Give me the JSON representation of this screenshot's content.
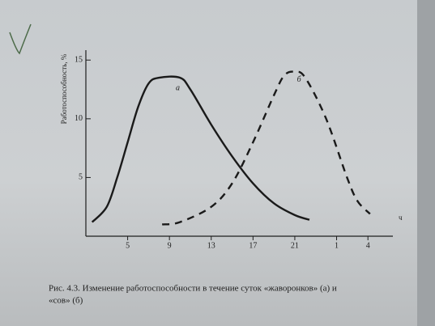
{
  "chart_data": {
    "type": "line",
    "ylabel": "Работоспособность, %",
    "xlabel": "ч",
    "xlim": [
      1,
      30
    ],
    "xticks": [
      5,
      9,
      13,
      17,
      21,
      {
        "value": 25,
        "label": "1"
      },
      {
        "value": 28,
        "label": "4"
      }
    ],
    "ylim": [
      0,
      15.5
    ],
    "yticks": [
      5,
      10,
      15
    ],
    "series": [
      {
        "name": "а",
        "color": "#1a1a1a",
        "dash": false,
        "x": [
          1.6,
          3,
          4,
          5,
          6,
          7,
          8,
          10,
          11,
          13,
          15,
          17,
          19,
          21,
          22.4
        ],
        "values": [
          1.2,
          2.5,
          5,
          8,
          11,
          13,
          13.5,
          13.5,
          12.5,
          9.5,
          6.8,
          4.5,
          2.8,
          1.8,
          1.4
        ]
      },
      {
        "name": "б",
        "color": "#1a1a1a",
        "dash": true,
        "x": [
          8.3,
          10,
          13,
          15,
          17,
          19,
          20,
          21,
          22,
          24,
          26,
          27,
          28.2
        ],
        "values": [
          1,
          1.2,
          2.5,
          4.5,
          8,
          12,
          13.7,
          14,
          13.5,
          10,
          5,
          3,
          1.9
        ]
      }
    ],
    "labels_at": [
      [
        9.8,
        12.6
      ],
      [
        21.4,
        13.3
      ]
    ],
    "caption": [
      "Рис. 4.3. Изменение работоспособности в течение суток «жаворонков» (а) и",
      "«сов» (б)"
    ]
  }
}
